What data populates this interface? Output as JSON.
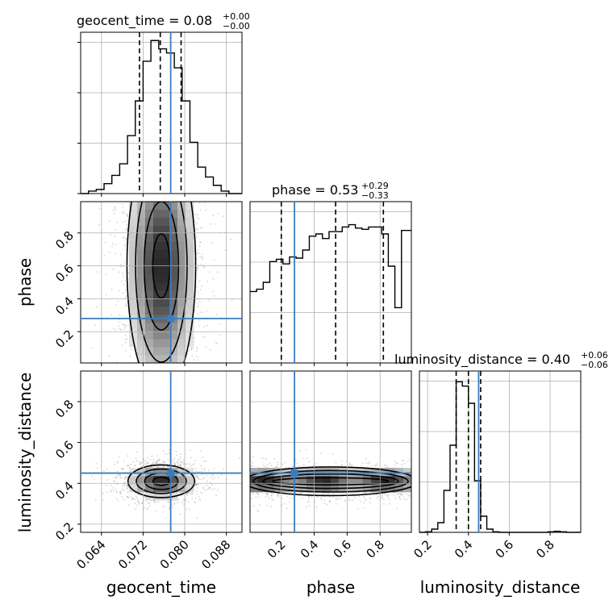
{
  "colors": {
    "truth": "#3b7bbf",
    "hist": "#000000",
    "grid": "#b0b0b0",
    "scatter": "#888888"
  },
  "chart_data": {
    "type": "corner",
    "parameters": [
      "geocent_time",
      "phase",
      "luminosity_distance"
    ],
    "truths": {
      "geocent_time": 0.0773,
      "phase": 0.28,
      "luminosity_distance": 0.45
    },
    "quantile_lines": {
      "geocent_time": [
        0.0713,
        0.0753,
        0.0793
      ],
      "phase": [
        0.2,
        0.53,
        0.82
      ],
      "luminosity_distance": [
        0.34,
        0.4,
        0.46
      ]
    },
    "titles": {
      "geocent_time": {
        "main": "geocent_time = 0.08",
        "sup": "+0.00",
        "sub": "−0.00"
      },
      "phase": {
        "main": "phase = 0.53",
        "sup": "+0.29",
        "sub": "−0.33"
      },
      "luminosity_distance": {
        "main": "luminosity_distance = 0.40",
        "sup": "+0.06",
        "sub": "−0.06"
      }
    },
    "axes": {
      "geocent_time": {
        "label": "geocent_time",
        "range": [
          0.06,
          0.091
        ],
        "ticks": [
          0.064,
          0.072,
          0.08,
          0.088
        ],
        "tick_labels": [
          "0.064",
          "0.072",
          "0.080",
          "0.088"
        ]
      },
      "phase": {
        "label": "phase",
        "range": [
          0.01,
          0.99
        ],
        "ticks": [
          0.2,
          0.4,
          0.6,
          0.8
        ],
        "tick_labels": [
          "0.2",
          "0.4",
          "0.6",
          "0.8"
        ]
      },
      "luminosity_distance": {
        "label": "luminosity_distance",
        "range": [
          0.16,
          0.95
        ],
        "ticks": [
          0.2,
          0.4,
          0.6,
          0.8
        ],
        "tick_labels": [
          "0.2",
          "0.4",
          "0.6",
          "0.8"
        ]
      }
    },
    "histograms": {
      "geocent_time": {
        "bin_edges": [
          0.06,
          0.0615,
          0.063,
          0.0645,
          0.066,
          0.0675,
          0.069,
          0.0705,
          0.072,
          0.0735,
          0.075,
          0.0765,
          0.078,
          0.0795,
          0.081,
          0.0825,
          0.084,
          0.0855,
          0.087,
          0.0885,
          0.09,
          0.091
        ],
        "counts": [
          0,
          3,
          5,
          12,
          22,
          36,
          70,
          112,
          160,
          185,
          175,
          170,
          152,
          112,
          62,
          32,
          20,
          10,
          3,
          0,
          0
        ],
        "ymax": 195
      },
      "phase": {
        "bin_edges": [
          0.01,
          0.05,
          0.09,
          0.13,
          0.17,
          0.21,
          0.25,
          0.29,
          0.33,
          0.37,
          0.41,
          0.45,
          0.49,
          0.53,
          0.57,
          0.61,
          0.65,
          0.69,
          0.73,
          0.77,
          0.81,
          0.85,
          0.89,
          0.93,
          0.97,
          0.99
        ],
        "counts": [
          62,
          64,
          70,
          88,
          90,
          86,
          92,
          91,
          98,
          110,
          112,
          108,
          114,
          114,
          118,
          120,
          117,
          116,
          118,
          118,
          112,
          84,
          48,
          115,
          115
        ],
        "ymax": 140
      },
      "luminosity_distance": {
        "bin_edges": [
          0.16,
          0.19,
          0.22,
          0.25,
          0.28,
          0.31,
          0.34,
          0.37,
          0.4,
          0.43,
          0.46,
          0.49,
          0.52,
          0.55,
          0.58,
          0.61,
          0.64,
          0.67,
          0.7,
          0.73,
          0.76,
          0.79,
          0.82,
          0.85,
          0.88,
          0.91,
          0.95
        ],
        "counts": [
          0,
          1,
          6,
          18,
          78,
          162,
          280,
          272,
          240,
          96,
          30,
          6,
          1,
          0,
          0,
          0,
          0,
          0,
          0,
          0,
          0,
          1,
          2,
          1,
          0,
          0
        ],
        "ymax": 300
      }
    },
    "pairs": [
      {
        "x": "geocent_time",
        "y": "phase",
        "center": [
          0.0755,
          0.6
        ],
        "spread": [
          0.0033,
          0.3
        ],
        "note": "elongated vertical posterior"
      },
      {
        "x": "geocent_time",
        "y": "luminosity_distance",
        "center": [
          0.0755,
          0.41
        ],
        "spread": [
          0.0032,
          0.04
        ]
      },
      {
        "x": "phase",
        "y": "luminosity_distance",
        "center": [
          0.5,
          0.41
        ],
        "spread": [
          0.5,
          0.035
        ]
      }
    ],
    "grid": true
  }
}
